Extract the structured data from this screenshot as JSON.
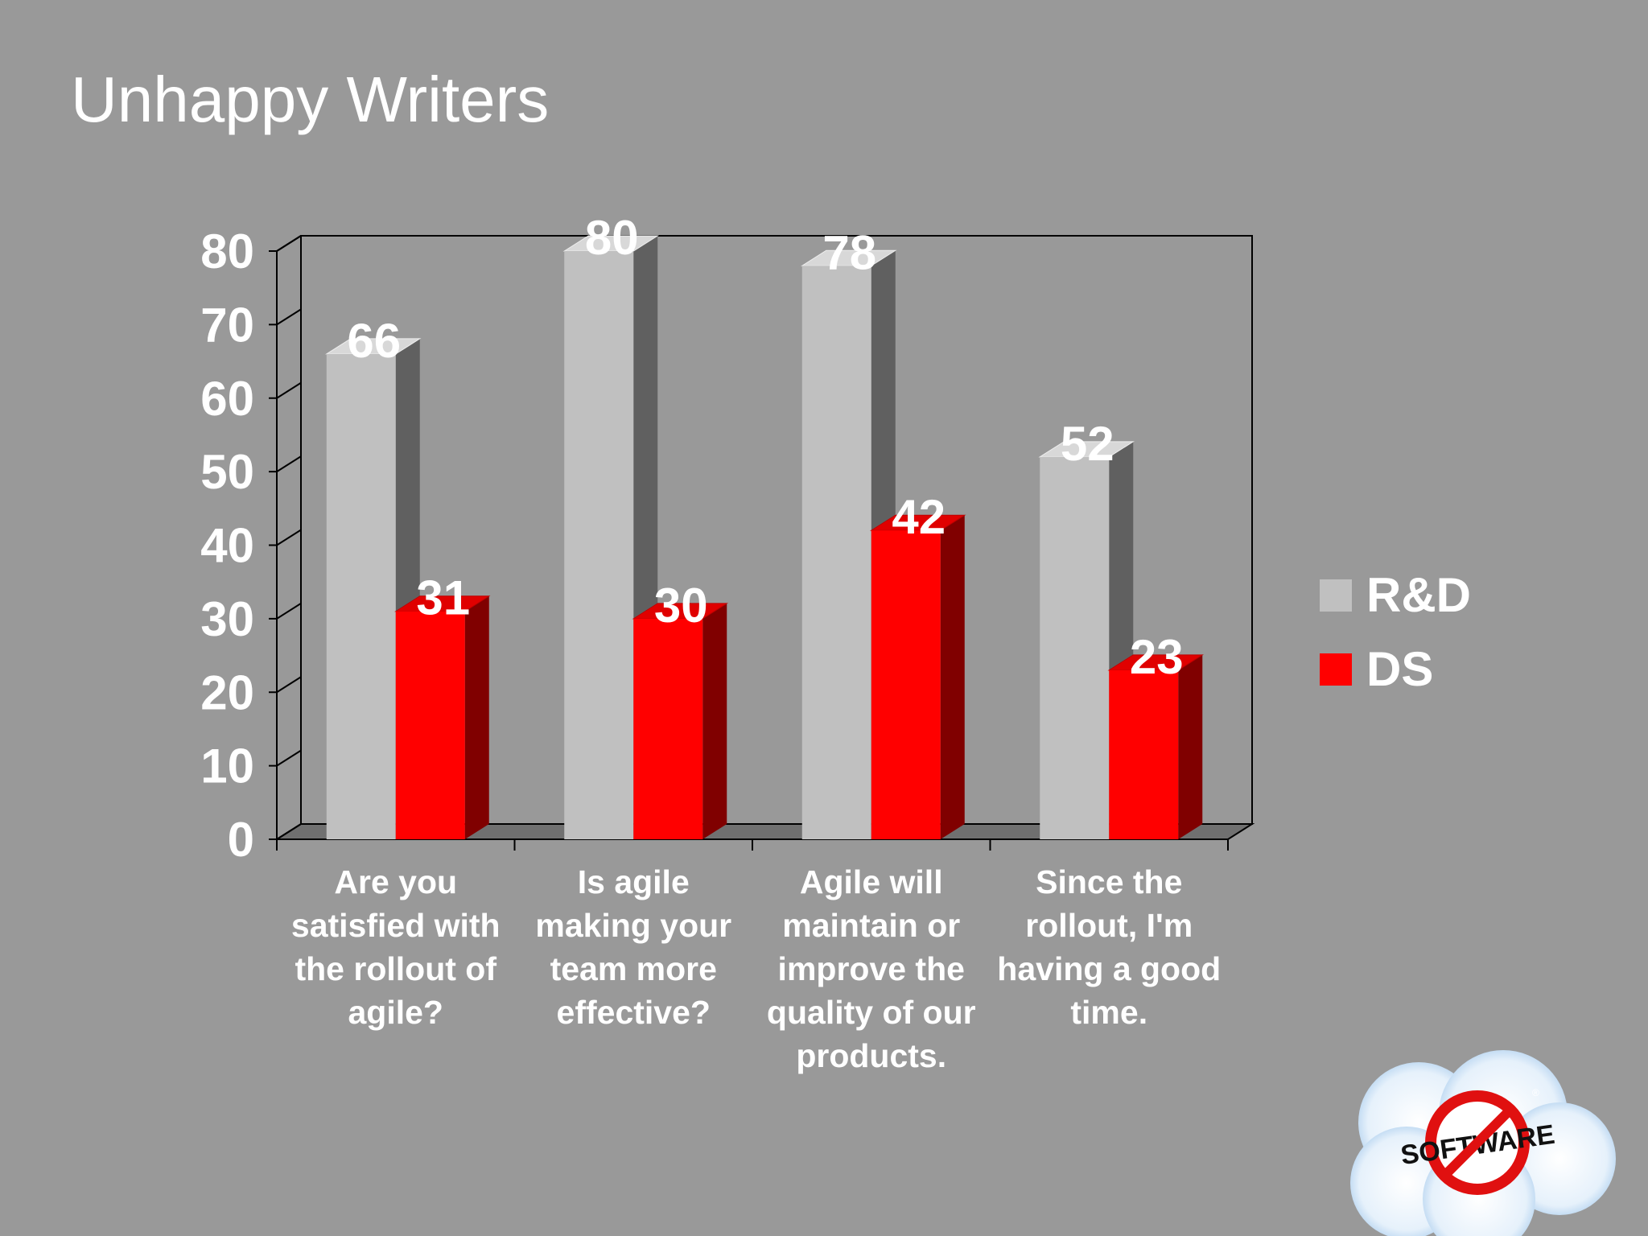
{
  "slide": {
    "title": "Unhappy Writers"
  },
  "colors": {
    "background": "#999999",
    "rd_front": "#c0c0c0",
    "rd_side": "#606060",
    "rd_top": "#d8d8d8",
    "ds_front": "#ff0000",
    "ds_side": "#800000",
    "ds_top": "#e00000"
  },
  "chart_data": {
    "type": "bar",
    "title": "",
    "xlabel": "",
    "ylabel": "",
    "ylim": [
      0,
      80
    ],
    "yticks": [
      0,
      10,
      20,
      30,
      40,
      50,
      60,
      70,
      80
    ],
    "grid": false,
    "legend_position": "right",
    "categories": [
      [
        "Are you",
        "satisfied with",
        "the rollout of",
        "agile?"
      ],
      [
        "Is agile",
        "making your",
        "team more",
        "effective?"
      ],
      [
        "Agile will",
        "maintain or",
        "improve the",
        "quality of our",
        "products."
      ],
      [
        "Since the",
        "rollout, I'm",
        "having a good",
        "time."
      ]
    ],
    "series": [
      {
        "name": "R&D",
        "values": [
          66,
          80,
          78,
          52
        ],
        "color": "#c0c0c0"
      },
      {
        "name": "DS",
        "values": [
          31,
          30,
          42,
          23
        ],
        "color": "#ff0000"
      }
    ]
  },
  "logo": {
    "icon": "no-software-logo-icon",
    "text": "SOFTWARE"
  }
}
